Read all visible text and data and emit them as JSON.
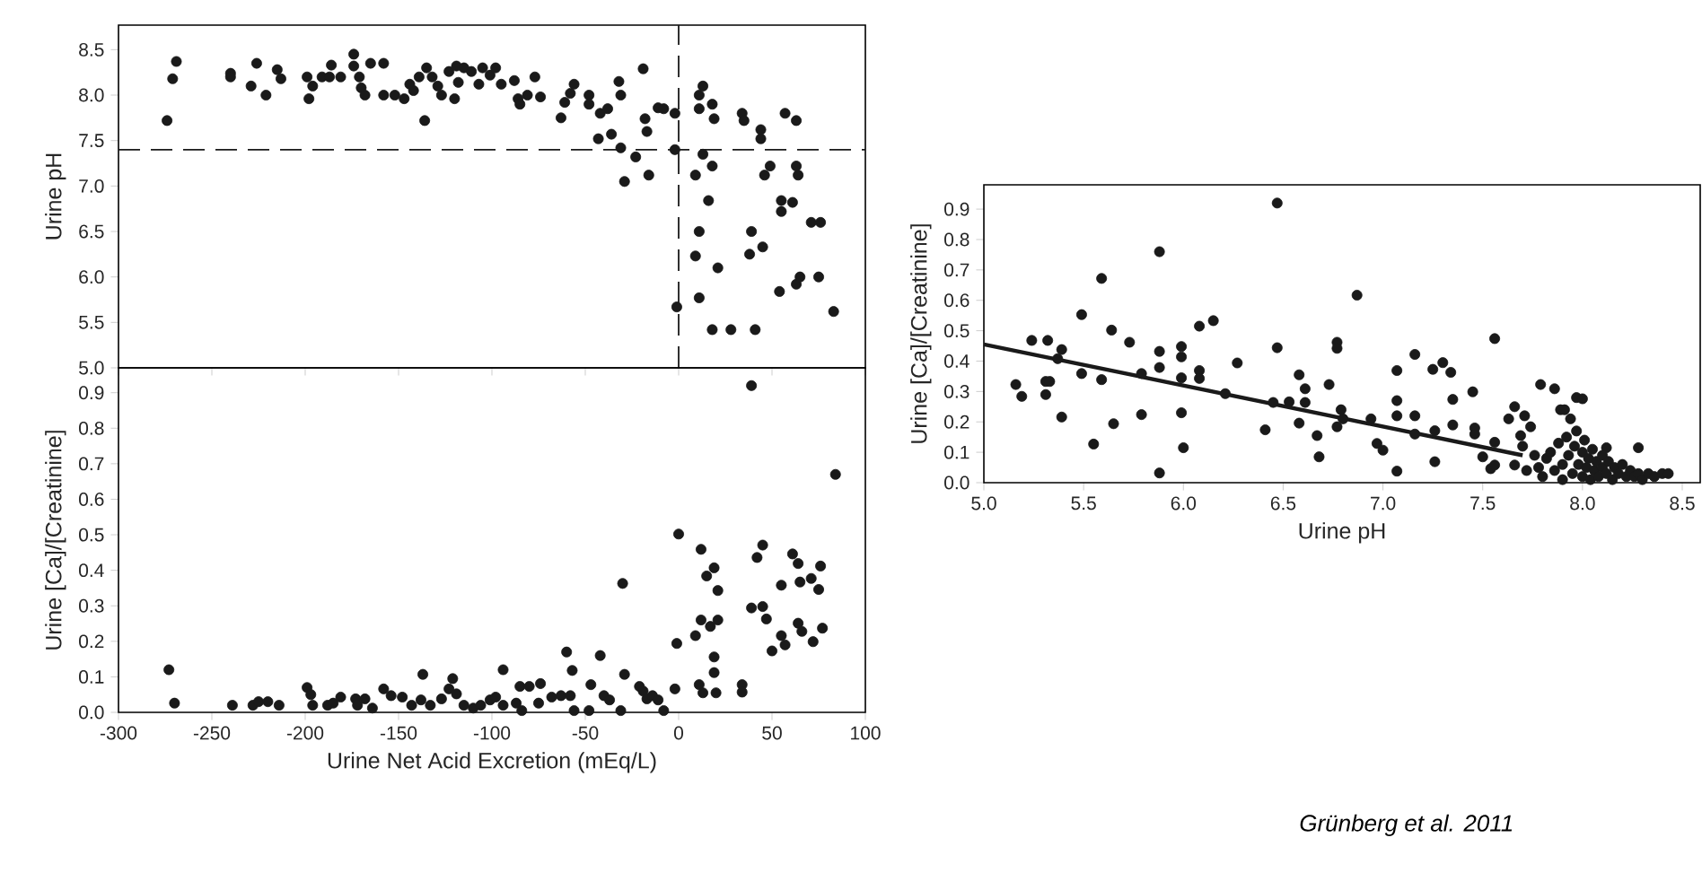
{
  "chart_data": [
    {
      "type": "scatter",
      "ylabel": "Urine pH",
      "xlim": [
        -300,
        100
      ],
      "ylim": [
        5.0,
        8.77
      ],
      "tick_labels": "y",
      "marker": "circle",
      "grid": false,
      "xticks": [
        -300,
        -250,
        -200,
        -150,
        -100,
        -50,
        0,
        50,
        100
      ],
      "yticks": [
        {
          "value": 5,
          "label": "5.0"
        },
        {
          "value": 5.5,
          "label": "5.5"
        },
        {
          "value": 6,
          "label": "6.0"
        },
        {
          "value": 6.5,
          "label": "6.5"
        },
        {
          "value": 7,
          "label": "7.0"
        },
        {
          "value": 7.5,
          "label": "7.5"
        },
        {
          "value": 8,
          "label": "8.0"
        },
        {
          "value": 8.5,
          "label": "8.5"
        }
      ],
      "ref_lines": [
        {
          "axis": "y",
          "value": 7.4,
          "color": "#1a1a1a",
          "line_style": "dashed"
        },
        {
          "axis": "x",
          "value": 0,
          "color": "#1a1a1a",
          "line_style": "dashed"
        }
      ],
      "series": [
        {
          "color": "#1a1a1a",
          "x": [
            -274,
            -271,
            -269,
            -240,
            -240,
            -229,
            -226,
            -221,
            -215,
            -213,
            -199,
            -198,
            -196,
            -191,
            -187,
            -186,
            -181,
            -174,
            -174,
            -171,
            -170,
            -168,
            -165,
            -158,
            -158,
            -152,
            -147,
            -144,
            -142,
            -139,
            -136,
            -135,
            -132,
            -129,
            -127,
            -123,
            -120,
            -119,
            -118,
            -115,
            -111,
            -107,
            -105,
            -101,
            -98,
            -95,
            -88,
            -86,
            -85,
            -81,
            -77,
            -74,
            -63,
            -61,
            -58,
            -56,
            -48,
            -48,
            -42,
            -38,
            -43,
            -36,
            -32,
            -31,
            -31,
            -29,
            -23,
            -19,
            -18,
            -17,
            -16,
            -11,
            -8,
            -2,
            -2,
            -1,
            9,
            9,
            11,
            11,
            13,
            13,
            11,
            11,
            16,
            18,
            18,
            19,
            18,
            21,
            28,
            34,
            35,
            39,
            38,
            41,
            44,
            44,
            45,
            46,
            49,
            54,
            55,
            55,
            57,
            61,
            63,
            63,
            63,
            64,
            65,
            71,
            76,
            75,
            83
          ],
          "values": [
            7.72,
            8.18,
            8.37,
            8.24,
            8.2,
            8.1,
            8.35,
            8.0,
            8.28,
            8.18,
            8.2,
            7.96,
            8.1,
            8.2,
            8.2,
            8.33,
            8.2,
            8.45,
            8.32,
            8.2,
            8.08,
            8.0,
            8.35,
            8.35,
            8.0,
            8.0,
            7.96,
            8.12,
            8.05,
            8.2,
            7.72,
            8.3,
            8.2,
            8.1,
            8.0,
            8.26,
            7.96,
            8.32,
            8.14,
            8.3,
            8.26,
            8.12,
            8.3,
            8.22,
            8.3,
            8.12,
            8.16,
            7.96,
            7.9,
            8.0,
            8.2,
            7.98,
            7.75,
            7.92,
            8.02,
            8.12,
            8.0,
            7.9,
            7.8,
            7.85,
            7.52,
            7.57,
            8.15,
            8.0,
            7.42,
            7.05,
            7.32,
            8.29,
            7.74,
            7.6,
            7.12,
            7.86,
            7.85,
            7.8,
            7.4,
            5.67,
            7.12,
            6.23,
            7.85,
            8.0,
            8.1,
            7.35,
            6.5,
            5.77,
            6.84,
            5.42,
            7.9,
            7.74,
            7.22,
            6.1,
            5.42,
            7.8,
            7.72,
            6.5,
            6.25,
            5.42,
            7.62,
            7.52,
            6.33,
            7.12,
            7.22,
            5.84,
            6.84,
            6.72,
            7.8,
            6.82,
            5.92,
            7.72,
            7.22,
            7.12,
            6.0,
            6.6,
            6.6,
            6.0,
            5.62
          ]
        }
      ]
    },
    {
      "type": "scatter",
      "xlabel": "Urine Net Acid Excretion (mEq/L)",
      "ylabel": "Urine [Ca]/[Creatinine]",
      "xlim": [
        -300,
        100
      ],
      "ylim": [
        0,
        0.97
      ],
      "marker": "circle",
      "grid": false,
      "xticks": [
        -300,
        -250,
        -200,
        -150,
        -100,
        -50,
        0,
        50,
        100
      ],
      "yticks": [
        {
          "value": 0,
          "label": "0.0"
        },
        0.1,
        0.2,
        0.3,
        0.4,
        0.5,
        0.6,
        0.7,
        0.8,
        0.9
      ],
      "series": [
        {
          "color": "#1a1a1a",
          "x": [
            -273,
            -270,
            -239,
            -228,
            -225,
            -220,
            -214,
            -199,
            -197,
            -196,
            -188,
            -185,
            -181,
            -173,
            -172,
            -168,
            -164,
            -158,
            -154,
            -148,
            -143,
            -138,
            -137,
            -133,
            -127,
            -123,
            -121,
            -119,
            -115,
            -110,
            -106,
            -101,
            -98,
            -94,
            -94,
            -87,
            -85,
            -84,
            -80,
            -75,
            -74,
            -68,
            -63,
            -60,
            -58,
            -57,
            -56,
            -48,
            -47,
            -42,
            -40,
            -37,
            -31,
            -30,
            -29,
            -21,
            -19,
            -17,
            -14,
            -11,
            -8,
            -2,
            -1,
            0,
            9,
            12,
            12,
            11,
            13,
            15,
            17,
            19,
            19,
            19,
            20,
            21,
            21,
            34,
            34,
            39,
            39,
            42,
            45,
            45,
            47,
            50,
            55,
            55,
            57,
            61,
            64,
            64,
            65,
            66,
            71,
            72,
            75,
            76,
            77,
            84
          ],
          "values": [
            0.12,
            0.026,
            0.02,
            0.02,
            0.03,
            0.03,
            0.02,
            0.07,
            0.05,
            0.02,
            0.02,
            0.026,
            0.043,
            0.038,
            0.02,
            0.038,
            0.012,
            0.066,
            0.047,
            0.043,
            0.02,
            0.035,
            0.107,
            0.02,
            0.038,
            0.066,
            0.095,
            0.052,
            0.02,
            0.012,
            0.02,
            0.035,
            0.043,
            0.12,
            0.02,
            0.026,
            0.073,
            0.005,
            0.073,
            0.026,
            0.081,
            0.043,
            0.047,
            0.17,
            0.047,
            0.118,
            0.005,
            0.005,
            0.078,
            0.16,
            0.047,
            0.035,
            0.005,
            0.363,
            0.107,
            0.073,
            0.06,
            0.038,
            0.047,
            0.035,
            0.005,
            0.066,
            0.194,
            0.502,
            0.216,
            0.459,
            0.26,
            0.078,
            0.055,
            0.384,
            0.242,
            0.407,
            0.156,
            0.112,
            0.055,
            0.26,
            0.343,
            0.078,
            0.057,
            0.92,
            0.294,
            0.436,
            0.471,
            0.298,
            0.263,
            0.173,
            0.358,
            0.216,
            0.19,
            0.446,
            0.419,
            0.251,
            0.367,
            0.228,
            0.377,
            0.199,
            0.346,
            0.412,
            0.237,
            0.67
          ]
        }
      ]
    },
    {
      "type": "scatter",
      "xlabel": "Urine pH",
      "ylabel": "Urine [Ca]/[Creatinine]",
      "xlim": [
        5.0,
        8.59
      ],
      "ylim": [
        0,
        0.98
      ],
      "marker": "circle",
      "grid": false,
      "xticks": [
        {
          "value": 5,
          "label": "5.0"
        },
        5.5,
        {
          "value": 6,
          "label": "6.0"
        },
        6.5,
        {
          "value": 7,
          "label": "7.0"
        },
        7.5,
        {
          "value": 8,
          "label": "8.0"
        },
        8.5
      ],
      "yticks": [
        {
          "value": 0,
          "label": "0.0"
        },
        0.1,
        0.2,
        0.3,
        0.4,
        0.5,
        0.6,
        0.7,
        0.8,
        0.9
      ],
      "annotations": [
        "Grünberg et al. 2011"
      ],
      "series": [
        {
          "color": "#1a1a1a",
          "x": [
            5.16,
            5.19,
            5.24,
            5.31,
            5.31,
            5.32,
            5.33,
            5.37,
            5.39,
            5.39,
            5.49,
            5.49,
            5.55,
            5.59,
            5.59,
            5.64,
            5.65,
            5.73,
            5.79,
            5.79,
            5.88,
            5.88,
            5.88,
            5.88,
            5.99,
            5.99,
            5.99,
            5.99,
            6.0,
            6.08,
            6.08,
            6.08,
            6.15,
            6.21,
            6.27,
            6.41,
            6.47,
            6.47,
            6.45,
            6.53,
            6.58,
            6.58,
            6.61,
            6.61,
            6.67,
            6.68,
            6.73,
            6.77,
            6.77,
            6.77,
            6.79,
            6.8,
            6.87,
            6.94,
            6.97,
            7.0,
            7.07,
            7.07,
            7.07,
            7.07,
            7.16,
            7.16,
            7.16,
            7.25,
            7.26,
            7.26,
            7.3,
            7.34,
            7.35,
            7.35,
            7.45,
            7.46,
            7.46,
            7.5,
            7.54,
            7.56,
            7.56,
            7.56,
            7.63,
            7.66,
            7.66,
            7.69,
            7.71,
            7.74,
            7.79,
            7.86,
            7.89,
            7.91,
            7.94,
            7.97,
            8.0,
            8.12,
            8.28,
            7.78,
            7.8,
            7.82,
            7.84,
            7.86,
            7.88,
            7.9,
            7.9,
            7.92,
            7.93,
            7.95,
            7.96,
            7.97,
            7.98,
            8.0,
            8.0,
            8.01,
            8.02,
            8.03,
            8.04,
            8.05,
            8.06,
            8.07,
            8.08,
            8.1,
            8.1,
            8.12,
            8.13,
            8.15,
            8.16,
            8.18,
            8.2,
            8.22,
            8.24,
            8.26,
            8.28,
            8.3,
            8.33,
            8.36,
            8.4,
            8.43,
            7.72,
            7.76,
            7.7
          ],
          "values": [
            0.323,
            0.284,
            0.468,
            0.333,
            0.29,
            0.468,
            0.333,
            0.408,
            0.438,
            0.216,
            0.553,
            0.359,
            0.127,
            0.672,
            0.339,
            0.502,
            0.194,
            0.462,
            0.359,
            0.224,
            0.76,
            0.432,
            0.379,
            0.032,
            0.448,
            0.414,
            0.345,
            0.23,
            0.115,
            0.515,
            0.369,
            0.343,
            0.533,
            0.293,
            0.394,
            0.174,
            0.92,
            0.444,
            0.264,
            0.266,
            0.355,
            0.196,
            0.309,
            0.264,
            0.155,
            0.085,
            0.323,
            0.184,
            0.462,
            0.442,
            0.24,
            0.21,
            0.617,
            0.21,
            0.129,
            0.107,
            0.369,
            0.27,
            0.22,
            0.038,
            0.422,
            0.22,
            0.16,
            0.373,
            0.171,
            0.069,
            0.395,
            0.363,
            0.274,
            0.19,
            0.299,
            0.18,
            0.16,
            0.085,
            0.046,
            0.474,
            0.133,
            0.058,
            0.21,
            0.25,
            0.058,
            0.155,
            0.22,
            0.184,
            0.323,
            0.309,
            0.24,
            0.24,
            0.21,
            0.28,
            0.276,
            0.115,
            0.115,
            0.05,
            0.02,
            0.08,
            0.1,
            0.04,
            0.13,
            0.06,
            0.01,
            0.15,
            0.09,
            0.03,
            0.12,
            0.17,
            0.06,
            0.1,
            0.02,
            0.14,
            0.05,
            0.08,
            0.01,
            0.11,
            0.04,
            0.07,
            0.02,
            0.09,
            0.05,
            0.03,
            0.07,
            0.01,
            0.05,
            0.03,
            0.06,
            0.02,
            0.04,
            0.02,
            0.03,
            0.01,
            0.03,
            0.02,
            0.03,
            0.03,
            0.04,
            0.09,
            0.12
          ]
        },
        {
          "type": "line",
          "marker": "none",
          "color": "#1a1a1a",
          "x": [
            5.0,
            7.7
          ],
          "values": [
            0.455,
            0.09
          ]
        }
      ]
    }
  ]
}
